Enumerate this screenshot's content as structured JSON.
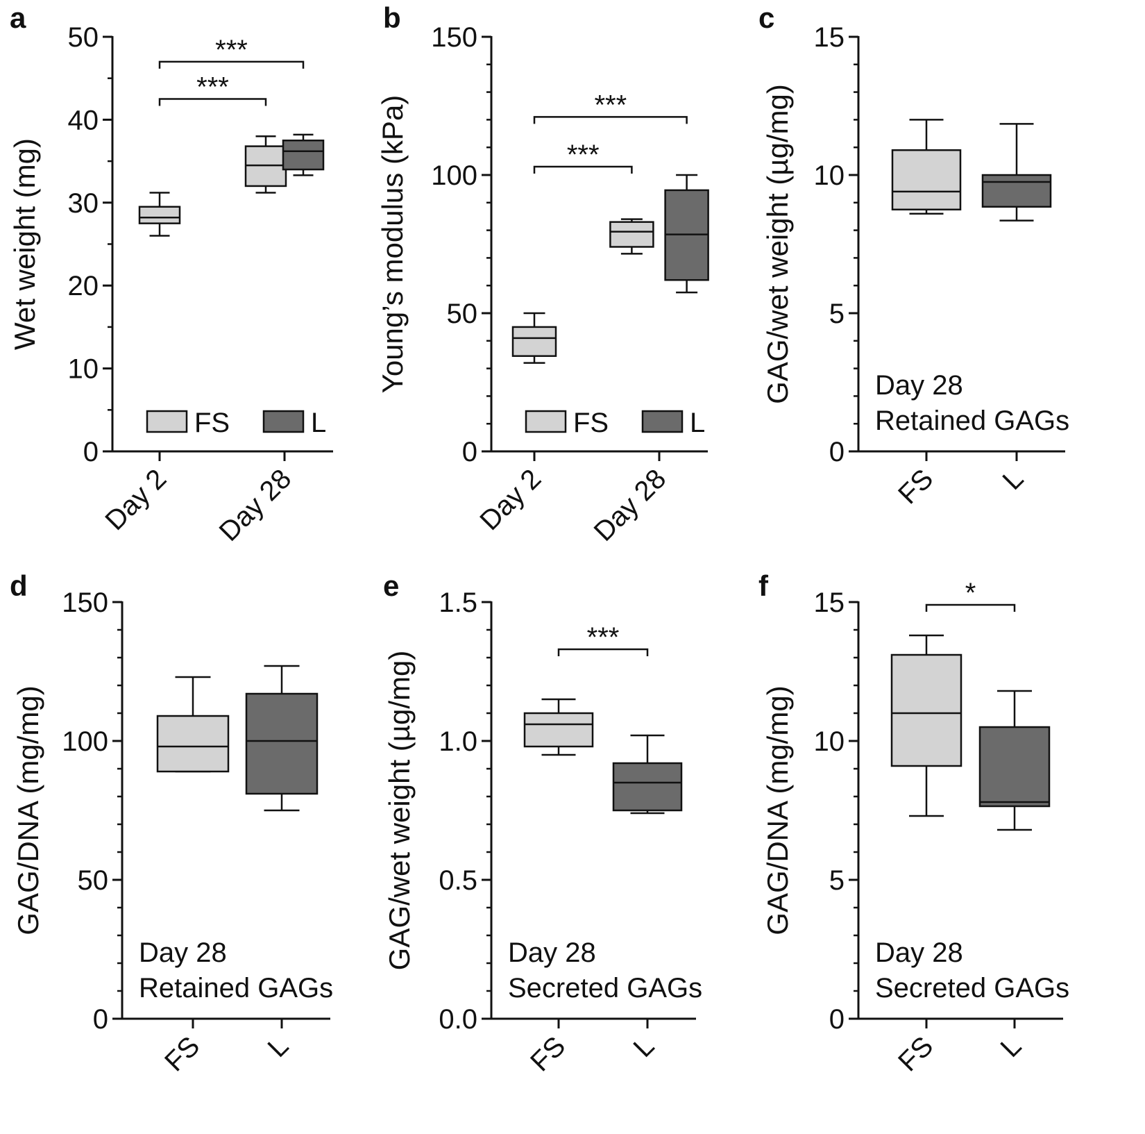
{
  "figure": {
    "type": "multi-panel box plot",
    "panel_count": 6
  },
  "colors": {
    "FS": "#d3d3d3",
    "L": "#6b6b6b",
    "line": "#111111"
  },
  "chart_data": [
    {
      "panel": "a",
      "type": "box",
      "ylabel": "Wet weight (mg)",
      "ylim": [
        0,
        50
      ],
      "yticks": [
        0,
        10,
        20,
        30,
        40,
        50
      ],
      "categories": [
        "Day 2",
        "Day 28"
      ],
      "rotate_xlabels": true,
      "legend": {
        "position": "bottom",
        "entries": [
          {
            "label": "FS",
            "color": "FS"
          },
          {
            "label": "L",
            "color": "L"
          }
        ]
      },
      "boxes": [
        {
          "group": "FS",
          "x": 0.0,
          "min": 26.0,
          "q1": 27.5,
          "median": 28.2,
          "q3": 29.5,
          "max": 31.2
        },
        {
          "group": "FS",
          "x": 0.85,
          "min": 31.2,
          "q1": 32.0,
          "median": 34.5,
          "q3": 36.8,
          "max": 38.0
        },
        {
          "group": "L",
          "x": 1.15,
          "min": 33.3,
          "q1": 34.0,
          "median": 36.2,
          "q3": 37.5,
          "max": 38.2
        }
      ],
      "annotations": [],
      "significance": [
        {
          "x1": 0.0,
          "x2": 0.85,
          "y": 42.5,
          "label": "***"
        },
        {
          "x1": 0.0,
          "x2": 1.15,
          "y": 47.0,
          "label": "***"
        }
      ]
    },
    {
      "panel": "b",
      "type": "box",
      "ylabel": "Young’s modulus (kPa)",
      "ylim": [
        0,
        150
      ],
      "yticks": [
        0,
        50,
        100,
        150
      ],
      "categories": [
        "Day 2",
        "Day 28"
      ],
      "rotate_xlabels": true,
      "legend": {
        "position": "bottom",
        "entries": [
          {
            "label": "FS",
            "color": "FS"
          },
          {
            "label": "L",
            "color": "L"
          }
        ]
      },
      "boxes": [
        {
          "group": "FS",
          "x": 0.0,
          "min": 32,
          "q1": 34.5,
          "median": 41,
          "q3": 45,
          "max": 50
        },
        {
          "group": "FS",
          "x": 0.78,
          "min": 71.5,
          "q1": 74,
          "median": 79.5,
          "q3": 83,
          "max": 84
        },
        {
          "group": "L",
          "x": 1.22,
          "min": 57.5,
          "q1": 62,
          "median": 78.5,
          "q3": 94.5,
          "max": 100
        }
      ],
      "annotations": [],
      "significance": [
        {
          "x1": 0.0,
          "x2": 0.78,
          "y": 103,
          "label": "***"
        },
        {
          "x1": 0.0,
          "x2": 1.22,
          "y": 121,
          "label": "***"
        }
      ]
    },
    {
      "panel": "c",
      "type": "box",
      "ylabel": "GAG/wet weight (µg/mg)",
      "ylim": [
        0,
        15
      ],
      "yticks": [
        0,
        5,
        10,
        15
      ],
      "categories": [
        "FS",
        "L"
      ],
      "rotate_xlabels": true,
      "legend": null,
      "boxes": [
        {
          "group": "FS",
          "x": 0.0,
          "min": 8.6,
          "q1": 8.75,
          "median": 9.4,
          "q3": 10.9,
          "max": 12.0
        },
        {
          "group": "L",
          "x": 1.0,
          "min": 8.35,
          "q1": 8.85,
          "median": 9.75,
          "q3": 10.0,
          "max": 11.85
        }
      ],
      "annotations": [
        "Day 28",
        "Retained GAGs"
      ],
      "significance": []
    },
    {
      "panel": "d",
      "type": "box",
      "ylabel": "GAG/DNA (mg/mg)",
      "ylim": [
        0,
        150
      ],
      "yticks": [
        0,
        50,
        100,
        150
      ],
      "categories": [
        "FS",
        "L"
      ],
      "rotate_xlabels": true,
      "legend": null,
      "boxes": [
        {
          "group": "FS",
          "x": 0.0,
          "min": 89,
          "q1": 89,
          "median": 98,
          "q3": 109,
          "max": 123
        },
        {
          "group": "L",
          "x": 1.0,
          "min": 75,
          "q1": 81,
          "median": 100,
          "q3": 117,
          "max": 127
        }
      ],
      "annotations": [
        "Day 28",
        "Retained GAGs"
      ],
      "significance": []
    },
    {
      "panel": "e",
      "type": "box",
      "ylabel": "GAG/wet weight (µg/mg)",
      "ylim": [
        0,
        1.5
      ],
      "yticks": [
        0.0,
        0.5,
        1.0,
        1.5
      ],
      "ytick_labels": [
        "0.0",
        "0.5",
        "1.0",
        "1.5"
      ],
      "categories": [
        "FS",
        "L"
      ],
      "rotate_xlabels": true,
      "legend": null,
      "boxes": [
        {
          "group": "FS",
          "x": 0.0,
          "min": 0.95,
          "q1": 0.98,
          "median": 1.06,
          "q3": 1.1,
          "max": 1.15
        },
        {
          "group": "L",
          "x": 1.0,
          "min": 0.74,
          "q1": 0.75,
          "median": 0.85,
          "q3": 0.92,
          "max": 1.02
        }
      ],
      "annotations": [
        "Day 28",
        "Secreted GAGs"
      ],
      "significance": [
        {
          "x1": 0.0,
          "x2": 1.0,
          "y": 1.33,
          "label": "***"
        }
      ]
    },
    {
      "panel": "f",
      "type": "box",
      "ylabel": "GAG/DNA (mg/mg)",
      "ylim": [
        0,
        15
      ],
      "yticks": [
        0,
        5,
        10,
        15
      ],
      "categories": [
        "FS",
        "L"
      ],
      "rotate_xlabels": true,
      "legend": null,
      "boxes": [
        {
          "group": "FS",
          "x": 0.0,
          "min": 7.3,
          "q1": 9.1,
          "median": 11.0,
          "q3": 13.1,
          "max": 13.8
        },
        {
          "group": "L",
          "x": 1.0,
          "min": 6.8,
          "q1": 7.65,
          "median": 7.8,
          "q3": 10.5,
          "max": 11.8
        }
      ],
      "annotations": [
        "Day 28",
        "Secreted GAGs"
      ],
      "significance": [
        {
          "x1": 0.0,
          "x2": 1.0,
          "y": 14.9,
          "label": "*"
        }
      ]
    }
  ]
}
